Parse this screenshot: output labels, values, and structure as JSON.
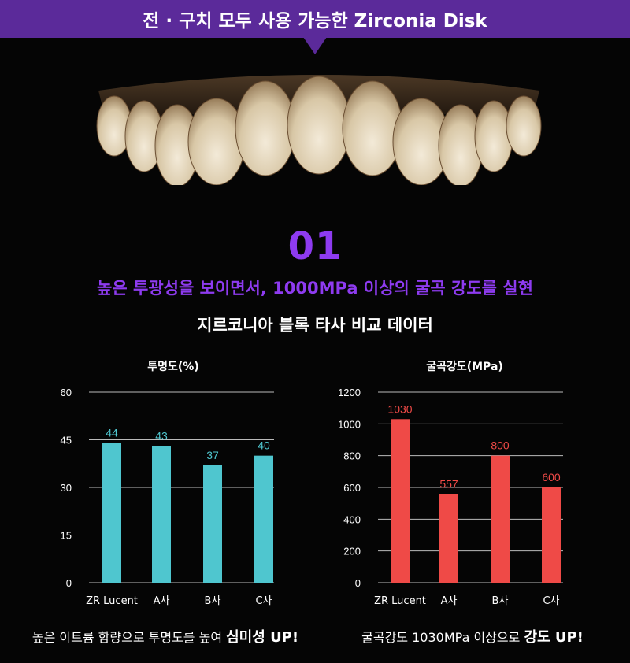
{
  "banner": {
    "text": "전 · 구치 모두 사용 가능한 Zirconia Disk"
  },
  "section": {
    "number": "01",
    "headline": "높은 투광성을 보이면서, 1000MPa 이상의 굴곡 강도를 실현",
    "subheadline": "지르코니아 블록 타사 비교 데이터"
  },
  "colors": {
    "accent": "#8e3bf0",
    "banner": "#5b2a9a",
    "teal": "#4fc6cf",
    "red": "#ef4a47"
  },
  "chart_data": [
    {
      "type": "bar",
      "title": "투명도(%)",
      "categories": [
        "ZR Lucent",
        "A사",
        "B사",
        "C사"
      ],
      "values": [
        44,
        43,
        37,
        40
      ],
      "yticks": [
        0,
        15,
        30,
        45,
        60
      ],
      "ylim": [
        0,
        60
      ],
      "color": "#4fc6cf",
      "grid": true
    },
    {
      "type": "bar",
      "title": "굴곡강도(MPa)",
      "categories": [
        "ZR Lucent",
        "A사",
        "B사",
        "C사"
      ],
      "values": [
        1030,
        557,
        800,
        600
      ],
      "yticks": [
        0,
        200,
        400,
        600,
        800,
        1000,
        1200
      ],
      "ylim": [
        0,
        1200
      ],
      "color": "#ef4a47",
      "grid": true
    }
  ],
  "captions": [
    {
      "text": "높은 이트륨 함량으로 투명도를 높여 ",
      "strong": "심미성 UP!"
    },
    {
      "text": "굴곡강도 1030MPa 이상으로 ",
      "strong": "강도 UP!"
    }
  ]
}
